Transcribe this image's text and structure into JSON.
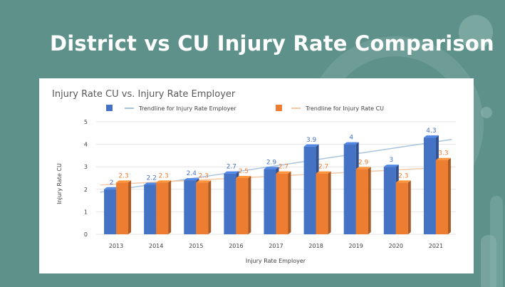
{
  "slide": {
    "title": "District vs CU Injury Rate Comparison"
  },
  "colors": {
    "background": "#5d918a",
    "employer_bar": "#4472c4",
    "cu_bar": "#ed7d31",
    "employer_trend": "#a9c4de",
    "cu_trend": "#f4c9a8"
  },
  "chart_data": {
    "type": "bar",
    "title": "Injury Rate CU vs. Injury Rate Employer",
    "xlabel": "Injury Rate Employer",
    "ylabel": "Injury Rate CU",
    "ylim": [
      0,
      5
    ],
    "yticks": [
      "0",
      "1",
      "2",
      "3",
      "4",
      "5"
    ],
    "categories": [
      "2013",
      "2014",
      "2015",
      "2016",
      "2017",
      "2018",
      "2019",
      "2020",
      "2021"
    ],
    "series": [
      {
        "key": "employer",
        "values": [
          2,
          2.2,
          2.4,
          2.7,
          2.9,
          3.9,
          4,
          3,
          4.3
        ],
        "labels": [
          "2",
          "2.2",
          "2.4",
          "2.7",
          "2.9",
          "3.9",
          "4",
          "3",
          "4.3"
        ]
      },
      {
        "key": "cu",
        "values": [
          2.3,
          2.3,
          2.3,
          2.5,
          2.7,
          2.7,
          2.9,
          2.3,
          3.3
        ],
        "labels": [
          "2.3",
          "2.3",
          "2.3",
          "2.5",
          "2.7",
          "2.7",
          "2.9",
          "2.3",
          "3.3"
        ]
      }
    ],
    "legend": {
      "position": "top",
      "entries": [
        "",
        "Trendline for Injury Rate Employer",
        "",
        "Trendline for Injury Rate CU"
      ]
    },
    "grid": true,
    "style": "3d"
  }
}
